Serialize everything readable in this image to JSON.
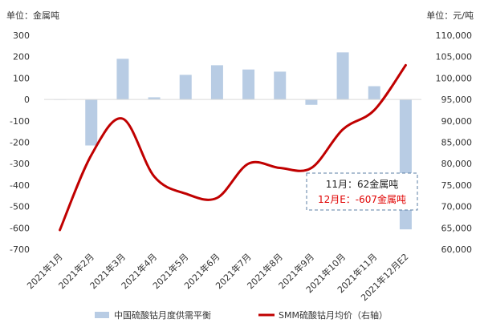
{
  "chart_data": {
    "type": "bar+line",
    "left_unit": "单位：金属吨",
    "right_unit": "单位：元/吨",
    "categories": [
      "2021年1月",
      "2021年2月",
      "2021年3月",
      "2021年4月",
      "2021年5月",
      "2021年6月",
      "2021年7月",
      "2021年8月",
      "2021年9月",
      "2021年10月",
      "2021年11月",
      "2021年12月E2"
    ],
    "left_axis": {
      "min": -700,
      "max": 300,
      "ticks": [
        "-700",
        "-600",
        "-500",
        "-400",
        "-300",
        "-200",
        "-100",
        "0",
        "100",
        "200",
        "300"
      ]
    },
    "right_axis": {
      "min": 60000,
      "max": 110000,
      "ticks": [
        "60,000",
        "65,000",
        "70,000",
        "75,000",
        "80,000",
        "85,000",
        "90,000",
        "95,000",
        "100,000",
        "105,000",
        "110,000"
      ]
    },
    "series": [
      {
        "name": "中国硫酸钴月度供需平衡",
        "type": "bar",
        "axis": "left",
        "color": "#b8cce4",
        "values": [
          0,
          -215,
          190,
          10,
          115,
          160,
          140,
          130,
          -25,
          220,
          62,
          -607
        ]
      },
      {
        "name": "SMM硫酸钴月均价（右轴）",
        "type": "line",
        "axis": "right",
        "color": "#c00000",
        "values": [
          64500,
          82000,
          90500,
          77000,
          73000,
          72000,
          80000,
          79000,
          79000,
          88000,
          92500,
          103000
        ]
      }
    ],
    "annotation": {
      "line1": "11月：62金属吨",
      "line2": "12月E：-607金属吨"
    },
    "grid": false,
    "legend_position": "bottom"
  }
}
